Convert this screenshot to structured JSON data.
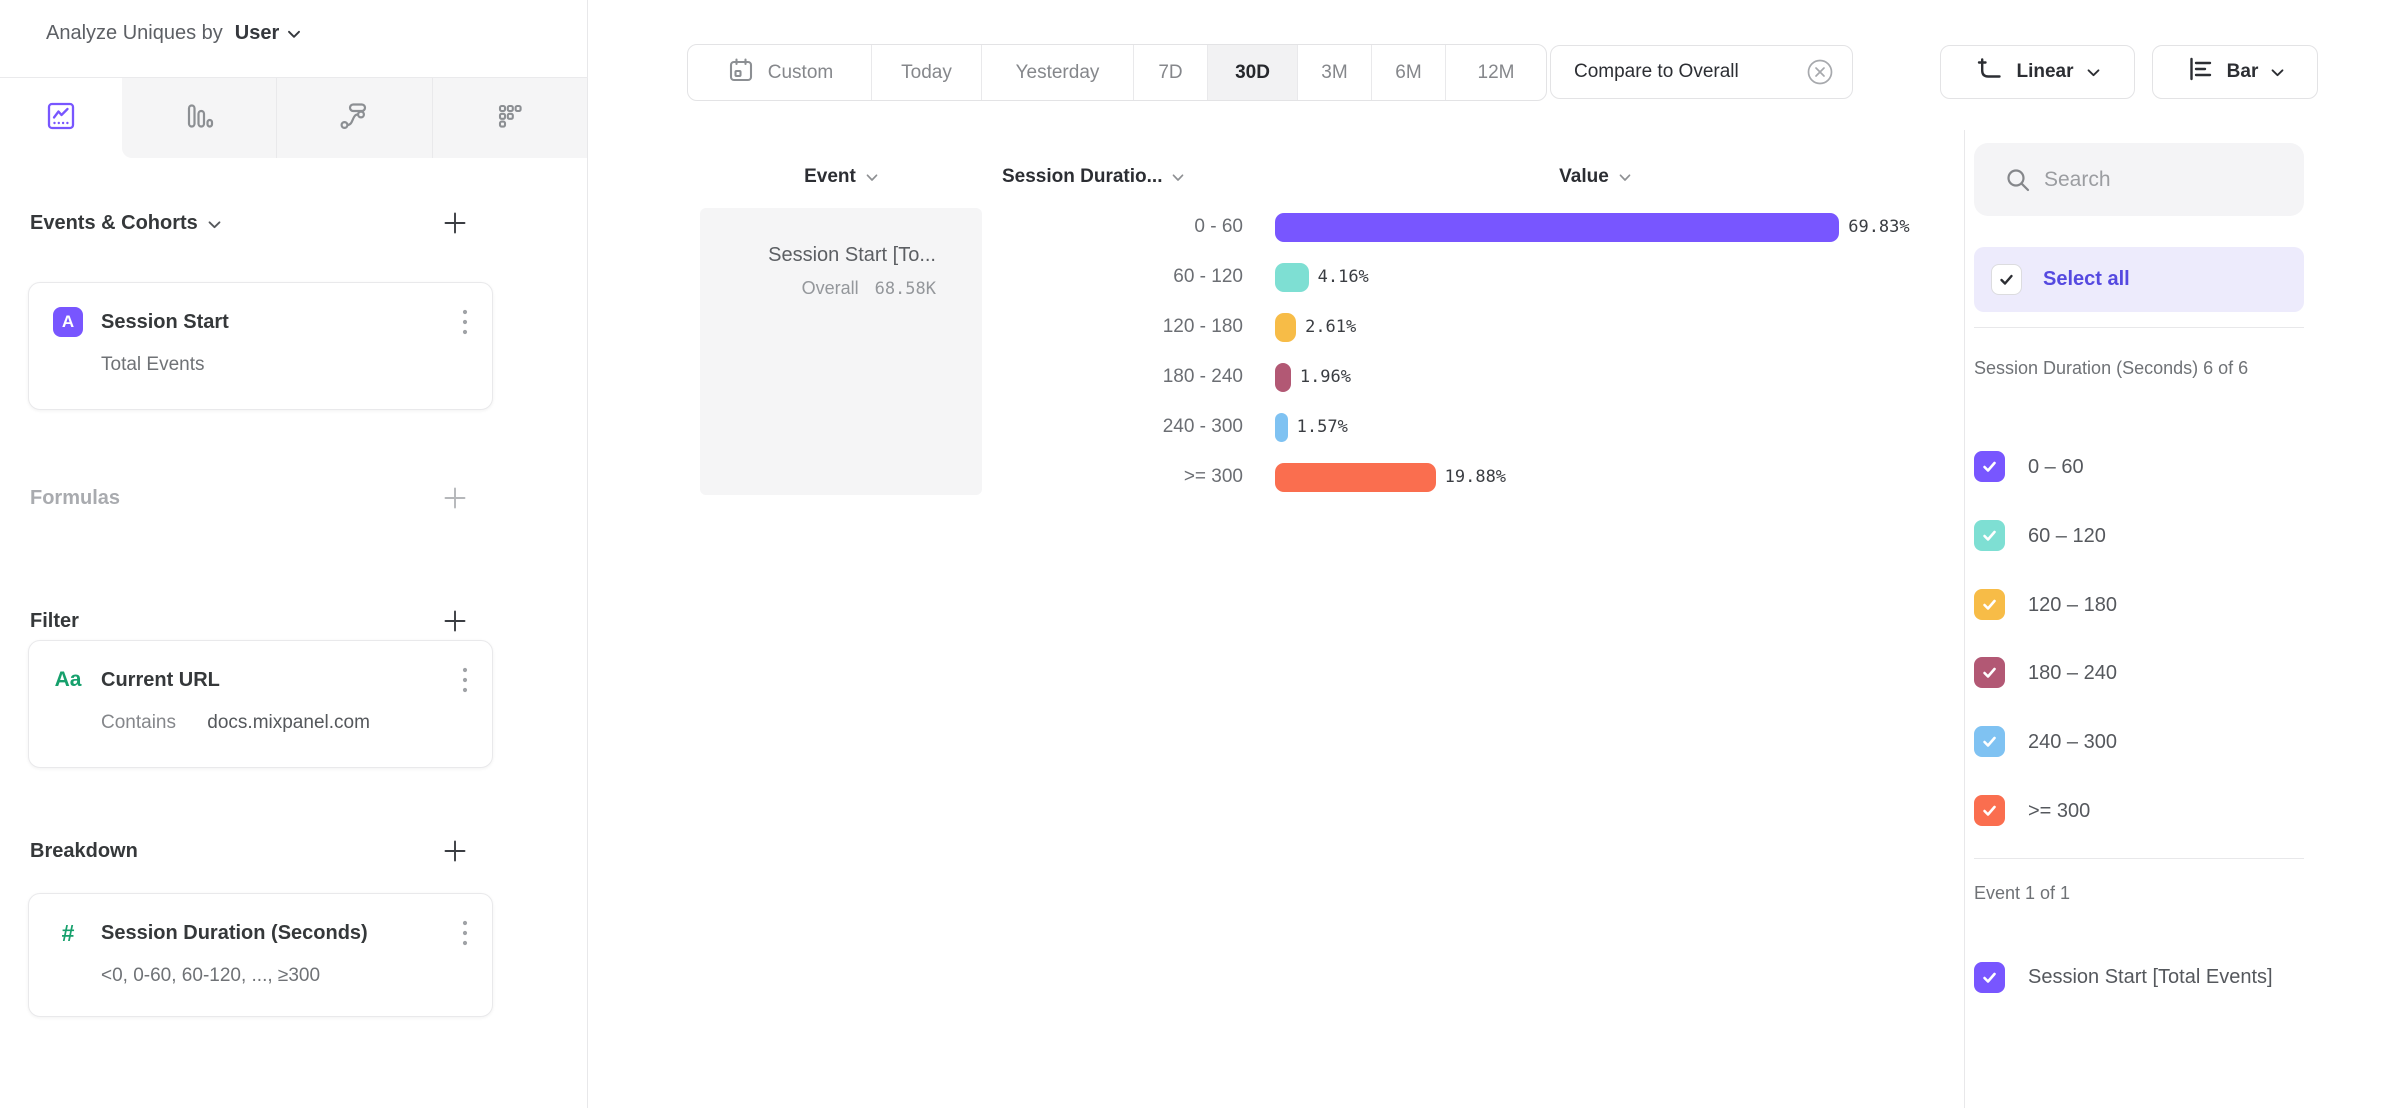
{
  "header": {
    "prefix": "Analyze Uniques by",
    "entity": "User"
  },
  "builder": {
    "events_section": {
      "title": "Events & Cohorts"
    },
    "event_card": {
      "badge": "A",
      "title": "Session Start",
      "subtitle": "Total Events"
    },
    "formulas_section": {
      "title": "Formulas"
    },
    "filter_section": {
      "title": "Filter"
    },
    "filter_card": {
      "icon": "Aa",
      "title": "Current URL",
      "operator": "Contains",
      "value": "docs.mixpanel.com"
    },
    "breakdown_section": {
      "title": "Breakdown"
    },
    "breakdown_card": {
      "icon": "#",
      "title": "Session Duration (Seconds)",
      "subtitle": "<0, 0-60, 60-120, ..., ≥300"
    }
  },
  "toolbar": {
    "date_ranges": [
      "Custom",
      "Today",
      "Yesterday",
      "7D",
      "30D",
      "3M",
      "6M",
      "12M"
    ],
    "active_range": "30D",
    "compare_chip": "Compare to Overall",
    "scale_button": "Linear",
    "chart_type_button": "Bar"
  },
  "chart": {
    "columns": {
      "event": "Event",
      "breakdown": "Session Duratio...",
      "value": "Value"
    },
    "event_cell": {
      "title": "Session Start [To...",
      "overall_label": "Overall",
      "overall_value": "68.58K"
    },
    "rows": [
      {
        "label": "0 - 60",
        "pct": 69.83,
        "display": "69.83%",
        "color": "#7856FF"
      },
      {
        "label": "60 - 120",
        "pct": 4.16,
        "display": "4.16%",
        "color": "#7EDFD3"
      },
      {
        "label": "120 - 180",
        "pct": 2.61,
        "display": "2.61%",
        "color": "#F7BC47"
      },
      {
        "label": "180 - 240",
        "pct": 1.96,
        "display": "1.96%",
        "color": "#B25874"
      },
      {
        "label": "240 - 300",
        "pct": 1.57,
        "display": "1.57%",
        "color": "#7FC2F2"
      },
      {
        "label": ">= 300",
        "pct": 19.88,
        "display": "19.88%",
        "color": "#FA6E4F"
      }
    ]
  },
  "chart_data": {
    "type": "bar",
    "orientation": "horizontal",
    "series_name": "Session Start [Total Events]",
    "categories": [
      "0 - 60",
      "60 - 120",
      "120 - 180",
      "180 - 240",
      "240 - 300",
      ">= 300"
    ],
    "values": [
      69.83,
      4.16,
      2.61,
      1.96,
      1.57,
      19.88
    ],
    "unit": "%",
    "overall_label": "Overall",
    "overall_value": "68.58K",
    "xlim": [
      0,
      80
    ],
    "bar_colors": [
      "#7856FF",
      "#7EDFD3",
      "#F7BC47",
      "#B25874",
      "#7FC2F2",
      "#FA6E4F"
    ]
  },
  "legend": {
    "search_placeholder": "Search",
    "select_all": "Select all",
    "breakdown_group": {
      "title": "Session Duration (Seconds) 6 of 6",
      "items": [
        {
          "label": "0 – 60",
          "color": "#7856FF"
        },
        {
          "label": "60 – 120",
          "color": "#7EDFD3"
        },
        {
          "label": "120 – 180",
          "color": "#F7BC47"
        },
        {
          "label": "180 – 240",
          "color": "#B25874"
        },
        {
          "label": "240 – 300",
          "color": "#7FC2F2"
        },
        {
          "label": ">= 300",
          "color": "#FA6E4F"
        }
      ]
    },
    "event_group": {
      "title": "Event 1 of 1",
      "items": [
        {
          "label": "Session Start [Total Events]",
          "color": "#7856FF"
        }
      ]
    }
  },
  "colors": {
    "accent_purple": "#7856FF",
    "select_all_text": "#5549E0",
    "property_green": "#16A06C",
    "border": "#E8E8EA"
  }
}
